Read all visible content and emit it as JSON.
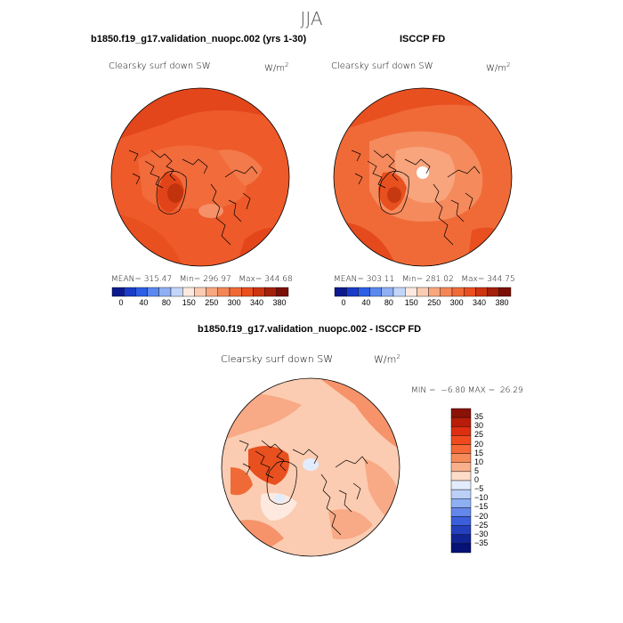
{
  "season": "JJA",
  "left_panel": {
    "header": "b1850.f19_g17.validation_nuopc.002 (yrs 1-30)",
    "variable": "Clearsky surf down SW",
    "units": "W/m",
    "units_sup": "2",
    "stats": "MEAN= 315.47   Min= 296.97   Max= 344.68"
  },
  "right_panel": {
    "header": "ISCCP FD",
    "variable": "Clearsky surf down SW",
    "units": "W/m",
    "units_sup": "2",
    "stats": "MEAN= 303.11   Min= 281.02   Max= 344.75"
  },
  "top_colorbar": {
    "labels": [
      "0",
      "40",
      "80",
      "150",
      "250",
      "300",
      "340",
      "380"
    ],
    "colors": [
      "#0b1a8c",
      "#1a3cc7",
      "#2d5ee6",
      "#5b89f0",
      "#8fb0f5",
      "#c3d6fa",
      "#fde9df",
      "#fbccb1",
      "#f8a77e",
      "#f48656",
      "#f06a38",
      "#ea4f1e",
      "#cc3510",
      "#a3200a",
      "#7a0f05"
    ]
  },
  "bottom_panel": {
    "header": "b1850.f19_g17.validation_nuopc.002 - ISCCP FD",
    "variable": "Clearsky surf down SW",
    "units": "W/m",
    "units_sup": "2",
    "minmax": "MIN =  −6.80 MAX =  26.29"
  },
  "diff_colorbar": {
    "labels": [
      "35",
      "30",
      "25",
      "20",
      "15",
      "10",
      "5",
      "0",
      "−5",
      "−10",
      "−15",
      "−20",
      "−25",
      "−30",
      "−35"
    ],
    "colors": [
      "#8a1206",
      "#b81d0a",
      "#dd2e12",
      "#ef4a1e",
      "#f36836",
      "#f68b5a",
      "#f9b08c",
      "#fdddc9",
      "#e3ecfc",
      "#bcd0f7",
      "#8eaff2",
      "#6387ea",
      "#3b5fdb",
      "#2540bd",
      "#102494",
      "#061275"
    ]
  }
}
